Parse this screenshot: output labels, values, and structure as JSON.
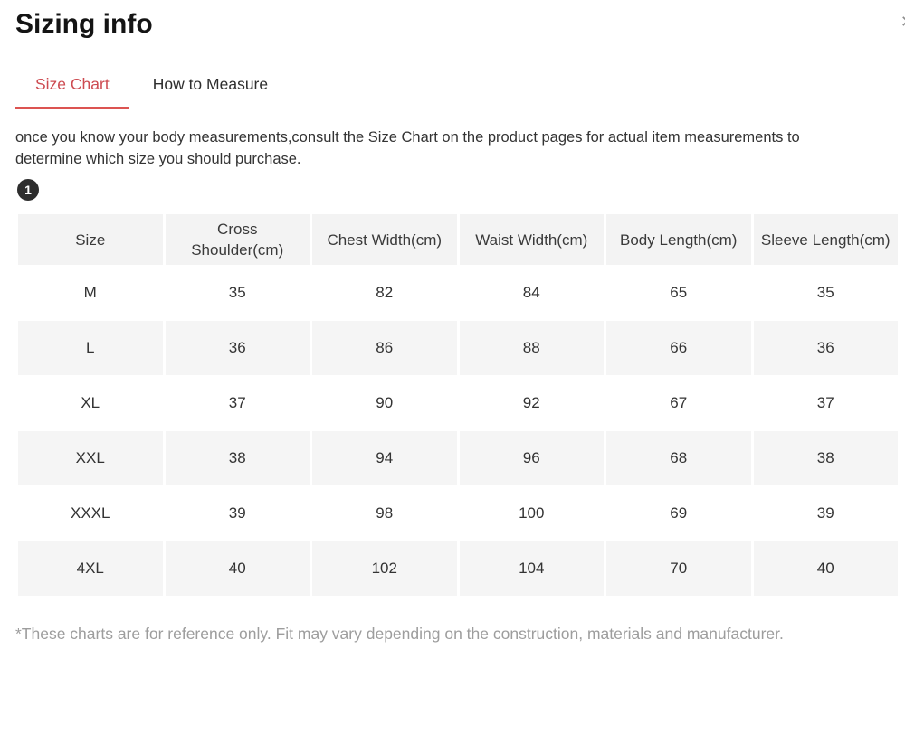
{
  "colors": {
    "accent_text": "#cd4b51",
    "accent_underline": "#dc5451"
  },
  "header": {
    "title": "Sizing info",
    "close_glyph": "✕"
  },
  "tabs": [
    {
      "label": "Size Chart",
      "active": true
    },
    {
      "label": "How to Measure",
      "active": false
    }
  ],
  "intro": "once you know your body measurements,consult the Size Chart on the product pages for actual item measurements to determine which size you should purchase.",
  "step_badge": "1",
  "table": {
    "columns": [
      "Size",
      "Cross Shoulder(cm)",
      "Chest Width(cm)",
      "Waist Width(cm)",
      "Body Length(cm)",
      "Sleeve Length(cm)"
    ],
    "rows": [
      [
        "M",
        "35",
        "82",
        "84",
        "65",
        "35"
      ],
      [
        "L",
        "36",
        "86",
        "88",
        "66",
        "36"
      ],
      [
        "XL",
        "37",
        "90",
        "92",
        "67",
        "37"
      ],
      [
        "XXL",
        "38",
        "94",
        "96",
        "68",
        "38"
      ],
      [
        "XXXL",
        "39",
        "98",
        "100",
        "69",
        "39"
      ],
      [
        "4XL",
        "40",
        "102",
        "104",
        "70",
        "40"
      ]
    ]
  },
  "footnote": "*These charts are for reference only. Fit may vary depending on the construction, materials and manufacturer."
}
